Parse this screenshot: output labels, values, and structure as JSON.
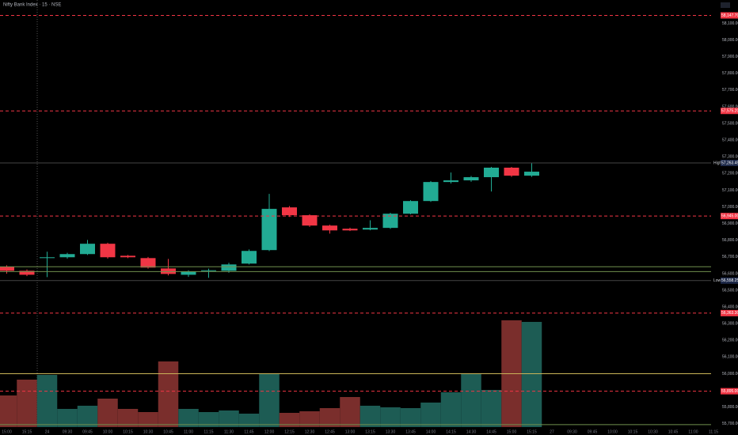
{
  "chart_data": {
    "type": "candlestick",
    "title": "Nifty Bank Index · 15 · NSE",
    "x": [
      "15:00",
      "15:15",
      "24",
      "09:30",
      "09:45",
      "10:00",
      "10:15",
      "10:30",
      "10:45",
      "11:00",
      "11:15",
      "11:30",
      "11:45",
      "12:00",
      "12:15",
      "12:30",
      "12:45",
      "13:00",
      "13:15",
      "13:30",
      "13:45",
      "14:00",
      "14:15",
      "14:30",
      "14:45",
      "15:00",
      "15:15",
      "27",
      "09:30",
      "09:45",
      "10:00",
      "10:15",
      "10:30",
      "10:45",
      "11:00",
      "11:15"
    ],
    "open": [
      56641,
      56617,
      56693,
      56698,
      56717,
      56779,
      56707,
      56693,
      56631,
      56593,
      56617,
      56617,
      56660,
      56741,
      56997,
      56950,
      56888,
      56869,
      56864,
      56874,
      56959,
      57035,
      57149,
      57159,
      57178,
      57235,
      57187,
      null,
      null,
      null,
      null,
      null,
      null,
      null,
      null,
      null
    ],
    "high": [
      56650,
      56625,
      56731,
      56725,
      56802,
      56785,
      56712,
      56700,
      56688,
      56620,
      56630,
      56665,
      56745,
      57078,
      57005,
      56955,
      56893,
      56875,
      56920,
      56965,
      57040,
      57155,
      57206,
      57185,
      57240,
      57240,
      57263,
      null,
      null,
      null,
      null,
      null,
      null,
      null,
      null,
      null
    ],
    "low": [
      56600,
      56585,
      56579,
      56690,
      56712,
      56690,
      56693,
      56630,
      56589,
      56580,
      56575,
      56605,
      56655,
      56735,
      56940,
      56880,
      56840,
      56855,
      56860,
      56868,
      56955,
      57030,
      57140,
      57150,
      57092,
      57180,
      57180,
      null,
      null,
      null,
      null,
      null,
      null,
      null,
      null,
      null
    ],
    "close": [
      56617,
      56593,
      56698,
      56717,
      56779,
      56698,
      56698,
      56636,
      56598,
      56612,
      56620,
      56655,
      56736,
      56988,
      56950,
      56888,
      56859,
      56859,
      56874,
      56959,
      57035,
      57149,
      57159,
      57178,
      57235,
      57187,
      57211,
      null,
      null,
      null,
      null,
      null,
      null,
      null,
      null,
      null
    ],
    "volume": [
      40000,
      60000,
      66000,
      23000,
      27000,
      36000,
      23000,
      19000,
      83000,
      23000,
      19000,
      21000,
      17000,
      68000,
      18000,
      20000,
      24000,
      38000,
      27000,
      25000,
      24000,
      31000,
      44000,
      68000,
      47000,
      135000,
      133000,
      null,
      null,
      null,
      null,
      null,
      null,
      null,
      null,
      null
    ],
    "up_color": "#22ab94",
    "down_color": "#f23645",
    "up_volume_color": "#1d5c54",
    "down_volume_color": "#7a2e2c",
    "ylim": [
      55680,
      58240
    ],
    "yticks": [
      {
        "value": 55700,
        "label": "55,700.00"
      },
      {
        "value": 55800,
        "label": "55,800.00"
      },
      {
        "value": 55900,
        "label": "55,900.00"
      },
      {
        "value": 56000,
        "label": "56,000.00"
      },
      {
        "value": 56100,
        "label": "56,100.00"
      },
      {
        "value": 56200,
        "label": "56,200.00"
      },
      {
        "value": 56300,
        "label": "56,300.00"
      },
      {
        "value": 56400,
        "label": "56,400.00"
      },
      {
        "value": 56500,
        "label": "56,500.00"
      },
      {
        "value": 56600,
        "label": "56,600.00"
      },
      {
        "value": 56700,
        "label": "56,700.00"
      },
      {
        "value": 56800,
        "label": "56,800.00"
      },
      {
        "value": 56900,
        "label": "56,900.00"
      },
      {
        "value": 57000,
        "label": "57,000.00"
      },
      {
        "value": 57100,
        "label": "57,100.00"
      },
      {
        "value": 57200,
        "label": "57,200.00"
      },
      {
        "value": 57300,
        "label": "57,300.00"
      },
      {
        "value": 57400,
        "label": "57,400.00"
      },
      {
        "value": 57500,
        "label": "57,500.00"
      },
      {
        "value": 57600,
        "label": "57,600.00"
      },
      {
        "value": 57700,
        "label": "57,700.00"
      },
      {
        "value": 57800,
        "label": "57,800.00"
      },
      {
        "value": 57900,
        "label": "57,900.00"
      },
      {
        "value": 58000,
        "label": "58,000.00"
      },
      {
        "value": 58100,
        "label": "58,100.00"
      }
    ],
    "grid": false,
    "levels": [
      {
        "value": 58147.7,
        "label": "58,147.70",
        "color": "#f23645",
        "style": "dashed"
      },
      {
        "value": 57575.2,
        "label": "57,575.20",
        "color": "#f23645",
        "style": "dashed"
      },
      {
        "value": 56945,
        "label": "56,945.00",
        "color": "#f23645",
        "style": "dashed"
      },
      {
        "value": 56363.3,
        "label": "56,363.30",
        "color": "#f23645",
        "style": "dashed"
      },
      {
        "value": 55895,
        "label": "55,895.00",
        "color": "#f23645",
        "style": "dashed"
      },
      {
        "value": 56000,
        "color": "#c9b458",
        "style": "solid"
      },
      {
        "value": 56641,
        "color": "#6f8f4e",
        "style": "solid"
      },
      {
        "value": 56612,
        "color": "#6f8f4e",
        "style": "solid"
      },
      {
        "value": 55695,
        "color": "#6f8f4e",
        "style": "solid"
      }
    ],
    "markers": [
      {
        "name": "High",
        "value": 57263.45,
        "label": "57,263.45"
      },
      {
        "name": "Low",
        "value": 56558.25,
        "label": "56,558.25"
      }
    ]
  }
}
